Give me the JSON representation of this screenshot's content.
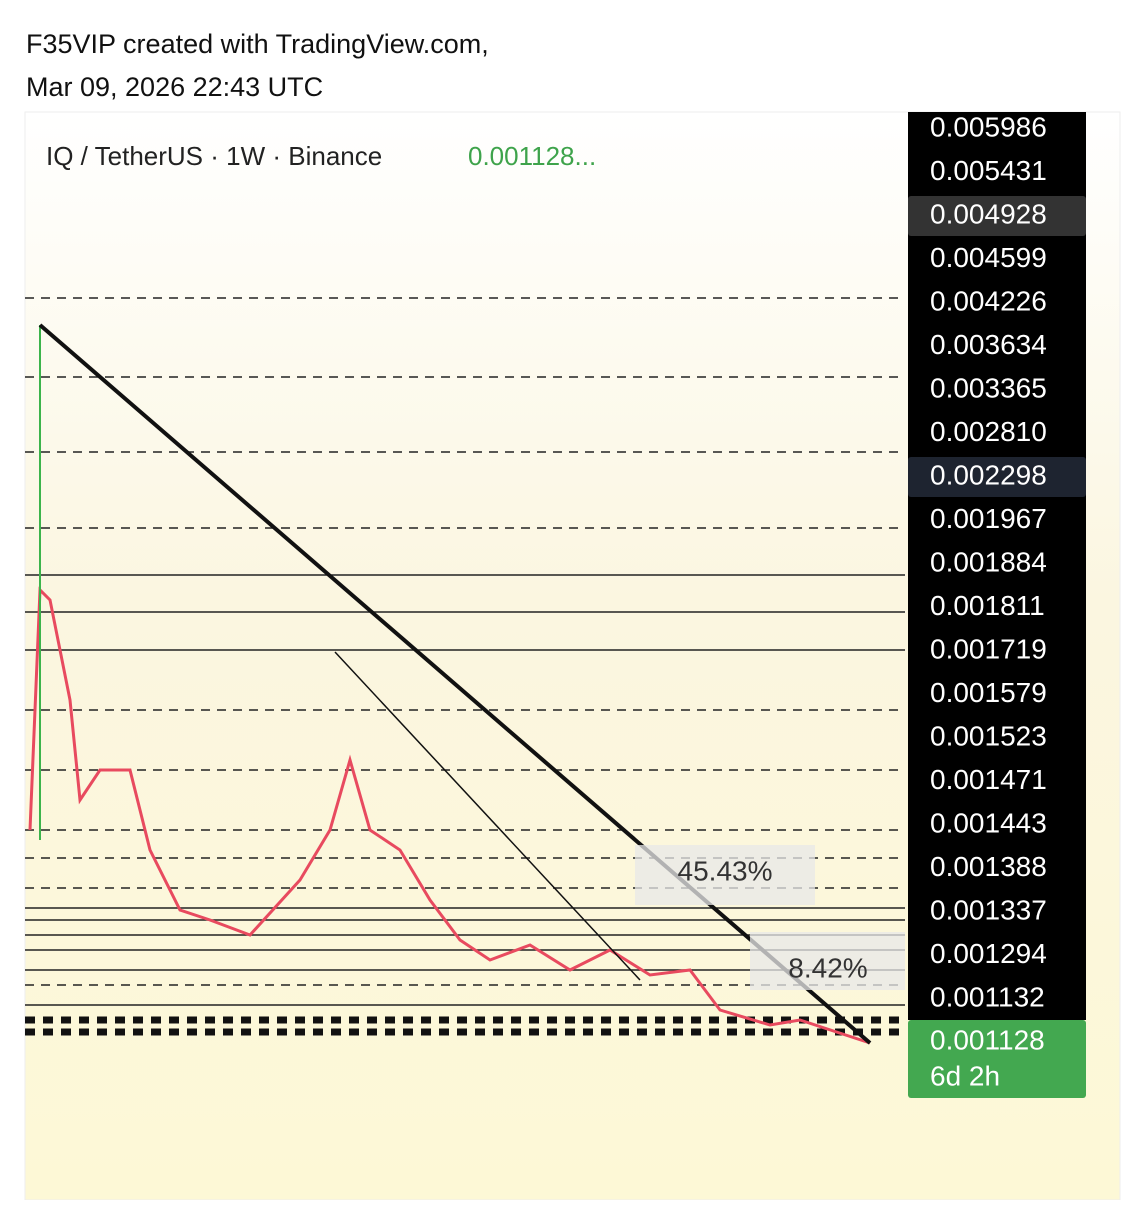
{
  "header": {
    "line1": "F35VIP created with TradingView.com,",
    "line2": "Mar 09, 2026 22:43 UTC"
  },
  "symbol": {
    "name": "IQ / TetherUS · 1W · Binance",
    "price": "0.001128..."
  },
  "price_scale": {
    "labels": [
      "0.005986",
      "0.005431",
      "0.004928",
      "0.004599",
      "0.004226",
      "0.003634",
      "0.003365",
      "0.002810",
      "0.002298",
      "0.001967",
      "0.001884",
      "0.001811",
      "0.001719",
      "0.001579",
      "0.001523",
      "0.001471",
      "0.001443",
      "0.001388",
      "0.001337",
      "0.001294",
      "0.001132"
    ]
  },
  "current": {
    "price": "0.001128",
    "countdown": "6d 2h"
  },
  "annotations": [
    "45.43%",
    "8.42%"
  ]
}
